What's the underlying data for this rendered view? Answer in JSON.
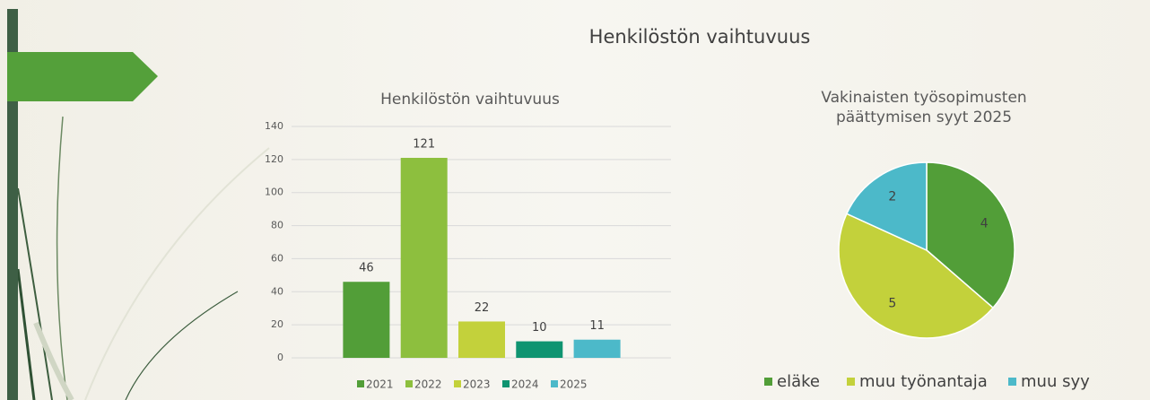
{
  "slide_title": "Henkilöstön vaihtuvuus",
  "chart_data": [
    {
      "type": "bar",
      "title": "Henkilöstön vaihtuvuus",
      "categories": [
        "2021",
        "2022",
        "2023",
        "2024",
        "2025"
      ],
      "values": [
        46,
        121,
        22,
        10,
        11
      ],
      "colors": [
        "#529e38",
        "#8dbf3e",
        "#c3d13b",
        "#0f9471",
        "#4cb9c9"
      ],
      "ylim": [
        0,
        140
      ],
      "yticks": [
        0,
        20,
        40,
        60,
        80,
        100,
        120,
        140
      ],
      "grid": true,
      "legend": "bottom"
    },
    {
      "type": "pie",
      "title": "Vakinaisten työsopimusten päättymisen syyt  2025",
      "categories": [
        "eläke",
        "muu työnantaja",
        "muu syy"
      ],
      "values": [
        4,
        5,
        2
      ],
      "colors": [
        "#529e38",
        "#c3d13b",
        "#4cb9c9"
      ],
      "legend": "bottom"
    }
  ]
}
